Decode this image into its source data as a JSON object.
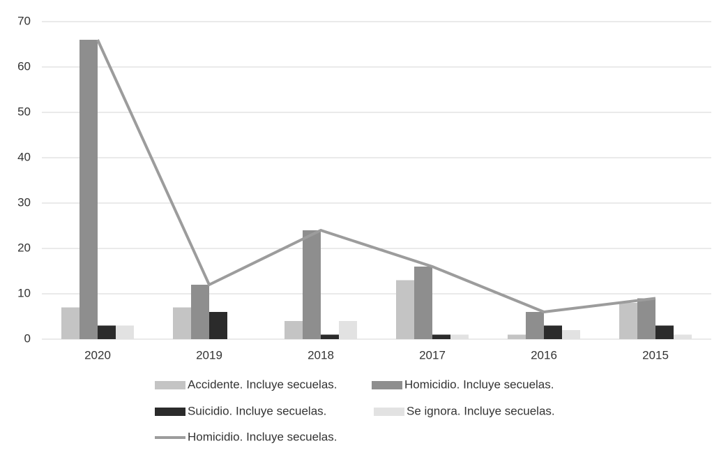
{
  "chart_data": {
    "type": "bar",
    "categories": [
      "2020",
      "2019",
      "2018",
      "2017",
      "2016",
      "2015"
    ],
    "series": [
      {
        "name": "Accidente. Incluye secuelas.",
        "color": "#c4c4c4",
        "values": [
          7,
          7,
          4,
          13,
          1,
          8
        ]
      },
      {
        "name": "Homicidio. Incluye secuelas.",
        "color": "#8e8e8e",
        "values": [
          66,
          12,
          24,
          16,
          6,
          9
        ]
      },
      {
        "name": "Suicidio. Incluye secuelas.",
        "color": "#2b2b2b",
        "values": [
          3,
          6,
          1,
          1,
          3,
          3
        ]
      },
      {
        "name": "Se ignora. Incluye secuelas.",
        "color": "#e2e2e2",
        "values": [
          3,
          0,
          4,
          1,
          2,
          1
        ]
      },
      {
        "name": "Homicidio. Incluye secuelas.",
        "color": "#9c9c9c",
        "type": "line",
        "values": [
          66,
          12,
          24,
          16,
          6,
          9
        ]
      }
    ],
    "ylim": [
      0,
      70
    ],
    "yticks": [
      0,
      10,
      20,
      30,
      40,
      50,
      60,
      70
    ],
    "grid": true,
    "legend": "bottom"
  }
}
